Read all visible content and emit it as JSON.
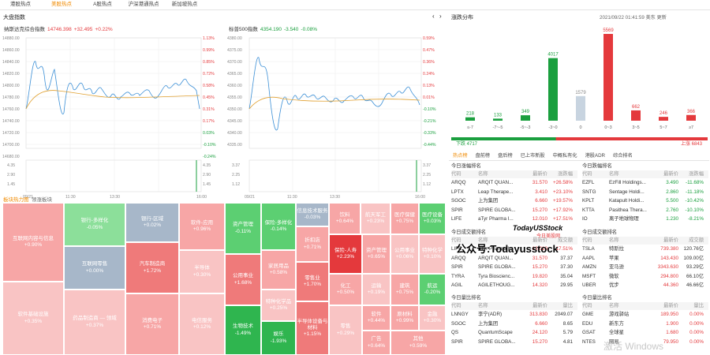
{
  "tabs": [
    "港股热点",
    "美股热点",
    "A股热点",
    "沪深港通热点",
    "新加坡热点"
  ],
  "active_tab": 1,
  "left_title": "大盘指数",
  "nasdaq": {
    "name": "纳斯达克综合指数",
    "price": "14746.398",
    "change": "+32.495",
    "pct": "+0.22%",
    "yticks": [
      "14880.00",
      "14860.00",
      "14840.00",
      "14820.00",
      "14800.00",
      "14780.00",
      "14760.00",
      "14740.00",
      "14720.00",
      "14700.00",
      "14680.00"
    ],
    "rticks": [
      "1.13%",
      "0.99%",
      "0.85%",
      "0.72%",
      "0.58%",
      "0.45%",
      "0.31%",
      "0.17%",
      "0.03%",
      "-0.10%",
      "-0.24%"
    ],
    "vticks": [
      "4.35",
      "2.90",
      "1.45"
    ],
    "vrticks": [
      "4.35",
      "2.90",
      "1.45"
    ],
    "xticks": [
      "09/21",
      "11:30",
      "13:30",
      "16:00"
    ]
  },
  "sp500": {
    "name": "标普500指数",
    "price": "4354.190",
    "change": "-3.540",
    "pct": "-0.08%",
    "yticks": [
      "4380.00",
      "4375.00",
      "4370.00",
      "4365.00",
      "4360.00",
      "4355.00",
      "4350.00",
      "4345.00",
      "4340.00",
      "4335.00"
    ],
    "rticks": [
      "0.59%",
      "0.47%",
      "0.36%",
      "0.24%",
      "0.13%",
      "0.01%",
      "-0.10%",
      "-0.21%",
      "-0.33%",
      "-0.44%"
    ],
    "vticks": [
      "3.37",
      "2.25",
      "1.12"
    ],
    "vrticks": [
      "3.37",
      "2.25",
      "1.12"
    ],
    "xticks": [
      "09/21",
      "11:30",
      "13:30",
      "16:00"
    ]
  },
  "heat_tabs": [
    "板块热力图",
    "领涨板块"
  ],
  "heatmap": [
    {
      "name": "互联网内容与信息",
      "pct": "+0.90%",
      "c": "#f7a6a6"
    },
    {
      "name": "软件基础设施",
      "pct": "+0.35%",
      "c": "#f9c4c4"
    },
    {
      "name": "银行-多样化",
      "pct": "-0.05%",
      "c": "#8cdf9a"
    },
    {
      "name": "互联网零售",
      "pct": "+0.00%",
      "c": "#a7b7c9"
    },
    {
      "name": "药品制造商 — 领域",
      "pct": "+0.37%",
      "c": "#f9c4c4"
    },
    {
      "name": "银行-区域",
      "pct": "+0.02%",
      "c": "#a7b7c9"
    },
    {
      "name": "汽车制造商",
      "pct": "+1.72%",
      "c": "#ef7a7a"
    },
    {
      "name": "消费电子",
      "pct": "+0.71%",
      "c": "#f7a6a6"
    },
    {
      "name": "软件-应用",
      "pct": "+0.96%",
      "c": "#f7a6a6"
    },
    {
      "name": "半导体",
      "pct": "+0.30%",
      "c": "#f9c4c4"
    },
    {
      "name": "电信服务",
      "pct": "+0.12%",
      "c": "#f9c4c4"
    },
    {
      "name": "资产管理",
      "pct": "-0.11%",
      "c": "#5ccf72"
    },
    {
      "name": "公用事业",
      "pct": "+1.68%",
      "c": "#ef7a7a"
    },
    {
      "name": "生物技术",
      "pct": "-1.49%",
      "c": "#2fb54f"
    },
    {
      "name": "保险-多样化",
      "pct": "-0.14%",
      "c": "#5ccf72"
    },
    {
      "name": "家居用品",
      "pct": "+0.58%",
      "c": "#f7a6a6"
    },
    {
      "name": "特种化学品",
      "pct": "+0.25%",
      "c": "#f9c4c4"
    },
    {
      "name": "娱乐",
      "pct": "-1.93%",
      "c": "#2fb54f"
    },
    {
      "name": "信息技术服务",
      "pct": "-0.03%",
      "c": "#a7b7c9"
    },
    {
      "name": "折扣店",
      "pct": "+0.71%",
      "c": "#f7a6a6"
    },
    {
      "name": "饮料",
      "pct": "+0.64%",
      "c": "#f7a6a6"
    },
    {
      "name": "零售业",
      "pct": "+1.70%",
      "c": "#ef7a7a"
    },
    {
      "name": "半导体设备与材料",
      "pct": "+1.15%",
      "c": "#ef7a7a"
    },
    {
      "name": "航天军工",
      "pct": "+0.23%",
      "c": "#f9c4c4"
    },
    {
      "name": "医疗保健",
      "pct": "+0.75%",
      "c": "#f7a6a6"
    },
    {
      "name": "保险-人寿",
      "pct": "+2.23%",
      "c": "#e4393c"
    },
    {
      "name": "资产管理",
      "pct": "+0.65%",
      "c": "#f7a6a6"
    },
    {
      "name": "公用事业",
      "pct": "+0.06%",
      "c": "#f9c4c4"
    },
    {
      "name": "医疗设备",
      "pct": "+0.03%",
      "c": "#5ccf72"
    },
    {
      "name": "特种化学",
      "pct": "+0.10%",
      "c": "#f9c4c4"
    },
    {
      "name": "化工",
      "pct": "+0.50%",
      "c": "#f7a6a6"
    },
    {
      "name": "运输",
      "pct": "+0.19%",
      "c": "#f9c4c4"
    },
    {
      "name": "建筑",
      "pct": "+0.75%",
      "c": "#f7a6a6"
    },
    {
      "name": "航运",
      "pct": "-0.20%",
      "c": "#5ccf72"
    },
    {
      "name": "零售",
      "pct": "+0.29%",
      "c": "#f9c4c4"
    },
    {
      "name": "软件",
      "pct": "+0.44%",
      "c": "#f7a6a6"
    },
    {
      "name": "原材料",
      "pct": "+0.99%",
      "c": "#f7a6a6"
    },
    {
      "name": "金融",
      "pct": "+0.30%",
      "c": "#f9c4c4"
    },
    {
      "name": "广告",
      "pct": "+0.64%",
      "c": "#f7a6a6"
    },
    {
      "name": "其他",
      "pct": "+0.59%",
      "c": "#f7a6a6"
    }
  ],
  "dist": {
    "title": "涨跌分布",
    "time": "2021/09/22 01:41:59 美东 更新",
    "bars": [
      {
        "l": "≤-7",
        "v": "218",
        "c": "#1a9f3e"
      },
      {
        "l": "-7~-5",
        "v": "133",
        "c": "#1a9f3e"
      },
      {
        "l": "-5~-3",
        "v": "349",
        "c": "#1a9f3e"
      },
      {
        "l": "-3~0",
        "v": "4017",
        "c": "#1a9f3e"
      },
      {
        "l": "0",
        "v": "1579",
        "c": "#c8d4e0"
      },
      {
        "l": "0~3",
        "v": "5569",
        "c": "#e4393c"
      },
      {
        "l": "3~5",
        "v": "662",
        "c": "#e4393c"
      },
      {
        "l": "5~7",
        "v": "246",
        "c": "#e4393c"
      },
      {
        "l": "≥7",
        "v": "366",
        "c": "#e4393c"
      }
    ],
    "down": "下跌 4717",
    "up": "上涨 6843"
  },
  "subtabs": [
    "热点榜",
    "盘前榜",
    "盘后榜",
    "已上市新股",
    "中概私有化",
    "港股ADR",
    "综合排名"
  ],
  "lists": [
    {
      "title": "今日涨幅排名",
      "cols": [
        "代码",
        "名称",
        "最新价",
        "涨跌幅"
      ],
      "rows": [
        [
          "ARQQ",
          "ARQIT QUAN...",
          "31.570",
          "+26.58%"
        ],
        [
          "LPTX",
          "Leap Therape...",
          "3.410",
          "+23.10%"
        ],
        [
          "SGOC",
          "上为集团",
          "6.660",
          "+19.57%"
        ],
        [
          "SPIR",
          "SPIRE GLOBA...",
          "15.270",
          "+17.92%"
        ],
        [
          "LIFE",
          "aTyr Pharma I...",
          "12.010",
          "+17.51%"
        ]
      ]
    },
    {
      "title": "今日跌幅排名",
      "cols": [
        "代码",
        "名称",
        "最新价",
        "涨跌幅"
      ],
      "rows": [
        [
          "EZFL",
          "EzFill Holdings...",
          "3.490",
          "-11.68%"
        ],
        [
          "SNTG",
          "Sentage Holdi...",
          "2.860",
          "-11.18%"
        ],
        [
          "KPLT",
          "Katapult Holdi...",
          "5.500",
          "-10.42%"
        ],
        [
          "KTTA",
          "Pasithea Thera...",
          "2.760",
          "-10.10%"
        ],
        [
          "IO",
          "离子地球物理",
          "1.230",
          "-8.21%"
        ]
      ]
    },
    {
      "title": "今日成交额排名",
      "cols": [
        "代码",
        "名称",
        "最新价",
        "成交额"
      ],
      "rows": [
        [
          "LIFE",
          "aTyr Pharma I...",
          "12.010",
          "17.51%"
        ],
        [
          "ARQQ",
          "ARQIT QUAN...",
          "31.570",
          "37.37"
        ],
        [
          "SPIR",
          "SPIRE GLOBA...",
          "15.270",
          "37.30"
        ],
        [
          "TYRA",
          "Tyra Bioscienc...",
          "19.820",
          "35.04"
        ],
        [
          "AGIL",
          "AGILETHOUG...",
          "14.320",
          "29.95"
        ]
      ]
    },
    {
      "title": "今日成交额排名",
      "cols": [
        "代码",
        "名称",
        "最新价",
        "成交额"
      ],
      "rows": [
        [
          "TSLA",
          "特斯拉",
          "739.380",
          "120.76亿"
        ],
        [
          "AAPL",
          "苹果",
          "143.430",
          "109.00亿"
        ],
        [
          "AMZN",
          "亚马逊",
          "3343.630",
          "93.29亿"
        ],
        [
          "MSFT",
          "微软",
          "294.800",
          "66.10亿"
        ],
        [
          "UBER",
          "优步",
          "44.360",
          "46.66亿"
        ]
      ]
    },
    {
      "title": "今日量比排名",
      "cols": [
        "代码",
        "名称",
        "最新价",
        "量比"
      ],
      "rows": [
        [
          "LNNGY",
          "李宁(ADR)",
          "313.830",
          "2049.07"
        ],
        [
          "SGOC",
          "上为集团",
          "6.660",
          "8.65"
        ],
        [
          "QS",
          "QuantumScape",
          "24.120",
          "5.79"
        ],
        [
          "SPIR",
          "SPIRE GLOBA...",
          "15.270",
          "4.81"
        ]
      ]
    },
    {
      "title": "今日量比排名",
      "cols": [
        "代码",
        "名称",
        "最新价",
        "量比"
      ],
      "rows": [
        [
          "GME",
          "游戏驿站",
          "189.950",
          "0.00%"
        ],
        [
          "EDU",
          "新东方",
          "1.900",
          "0.00%"
        ],
        [
          "GSAT",
          "全球星",
          "1.680",
          "0.00%"
        ],
        [
          "NTES",
          "网易",
          "79.950",
          "0.00%"
        ]
      ]
    }
  ],
  "wm1": "TodayUSStock",
  "wm2": "今日美股网",
  "wm3": "公众号:Todayusstock",
  "wm4": "激活 Windows"
}
